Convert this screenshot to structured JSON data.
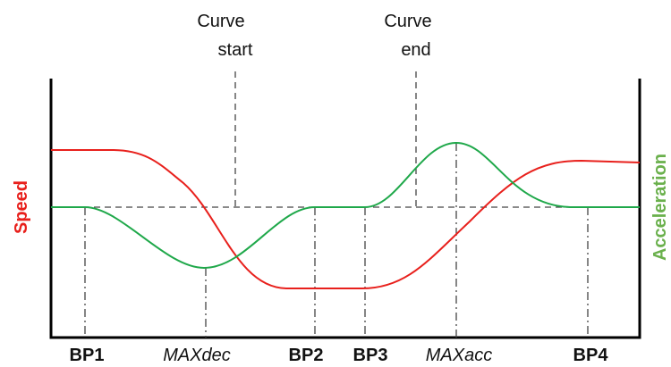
{
  "curve_start": {
    "line1": "Curve",
    "line2": "start"
  },
  "curve_end": {
    "line1": "Curve",
    "line2": "end"
  },
  "left_axis_label": "Speed",
  "right_axis_label": "Acceleration",
  "points": [
    {
      "label": "BP1",
      "style": "bold"
    },
    {
      "label": "MAXdec",
      "style": "italic"
    },
    {
      "label": "BP2",
      "style": "bold"
    },
    {
      "label": "BP3",
      "style": "bold"
    },
    {
      "label": "MAXacc",
      "style": "italic"
    },
    {
      "label": "BP4",
      "style": "bold"
    }
  ]
}
